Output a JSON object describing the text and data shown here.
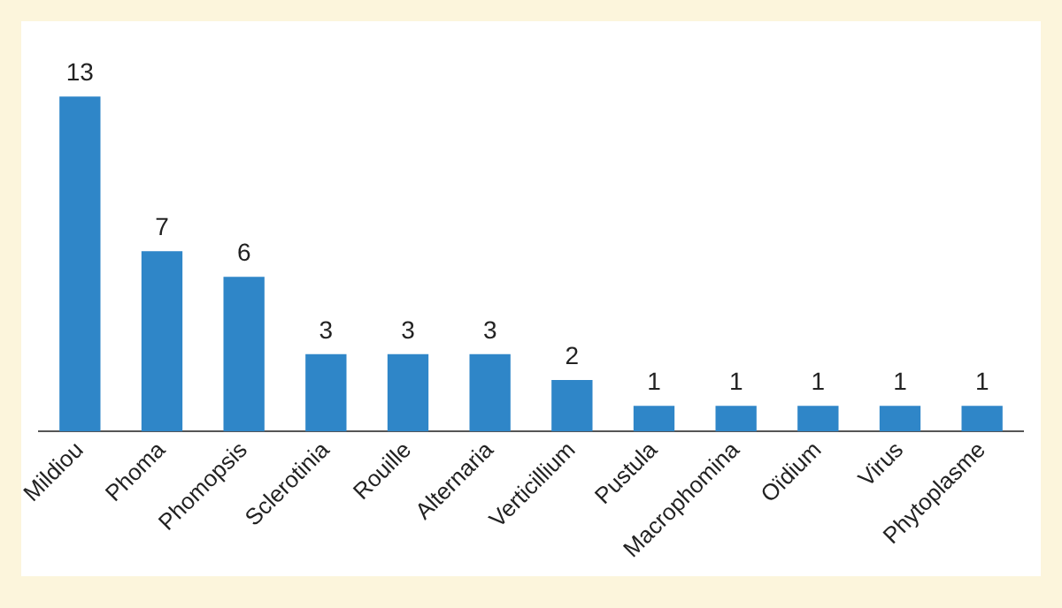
{
  "chart_data": {
    "type": "bar",
    "categories": [
      "Mildiou",
      "Phoma",
      "Phomopsis",
      "Sclerotinia",
      "Rouille",
      "Alternaria",
      "Verticillium",
      "Pustula",
      "Macrophomina",
      "Oïdium",
      "Virus",
      "Phytoplasme"
    ],
    "values": [
      13,
      7,
      6,
      3,
      3,
      3,
      2,
      1,
      1,
      1,
      1,
      1
    ],
    "color": "#2f86c8",
    "data_labels": true,
    "grid": false,
    "legend": false
  }
}
